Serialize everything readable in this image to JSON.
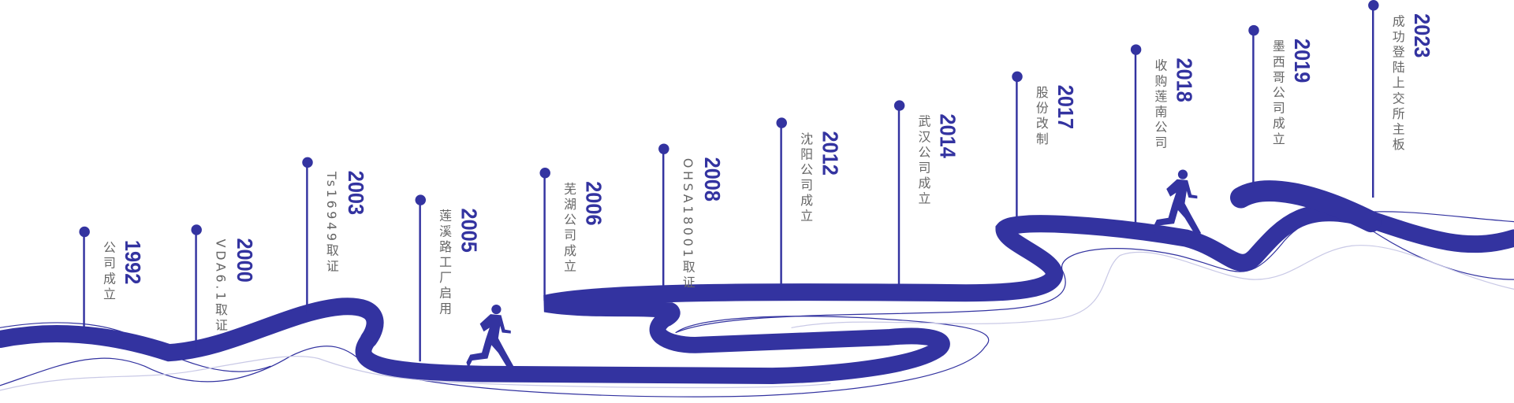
{
  "accent_color": "#3333a0",
  "label_color": "#666666",
  "thin_line_color": "#c9c9e6",
  "icons": [
    "runner-icon",
    "runner-icon"
  ],
  "milestones": [
    {
      "year": "1992",
      "label": "公司成立"
    },
    {
      "year": "2000",
      "label": "VDA6.1取证"
    },
    {
      "year": "2003",
      "label": "Ts16949取证"
    },
    {
      "year": "2005",
      "label": "莲溪路工厂启用"
    },
    {
      "year": "2006",
      "label": "芜湖公司成立"
    },
    {
      "year": "2008",
      "label": "OHSA18001取证"
    },
    {
      "year": "2012",
      "label": "沈阳公司成立"
    },
    {
      "year": "2014",
      "label": "武汉公司成立"
    },
    {
      "year": "2017",
      "label": "股份改制"
    },
    {
      "year": "2018",
      "label": "收购莲南公司"
    },
    {
      "year": "2019",
      "label": "墨西哥公司成立"
    },
    {
      "year": "2023",
      "label": "成功登陆上交所主板"
    }
  ]
}
